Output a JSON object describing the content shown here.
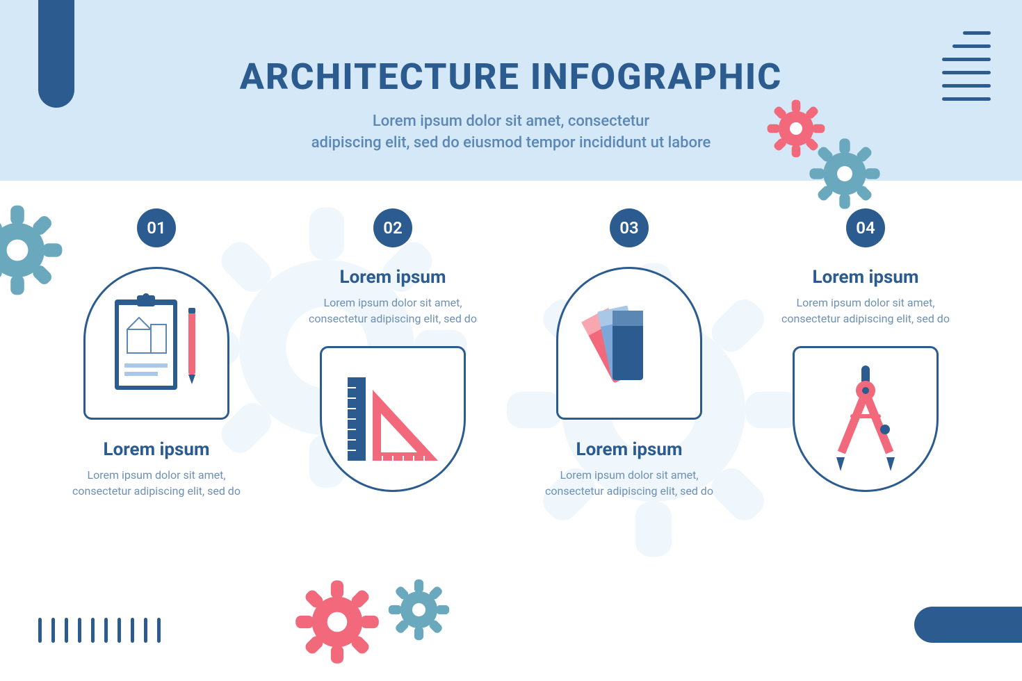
{
  "title": "ARCHITECTURE INFOGRAPHIC",
  "subtitle_line1": "Lorem ipsum dolor sit amet, consectetur",
  "subtitle_line2": "adipiscing elit, sed do eiusmod tempor incididunt ut labore",
  "colors": {
    "primary": "#2b5b8f",
    "header_bg": "#d4e8f7",
    "accent_red": "#f1697a",
    "accent_teal": "#6aa8bd",
    "text_muted": "#6d90b3",
    "light_blue": "#a9c8e8",
    "bg_gear": "#d4e8f7"
  },
  "decorations": {
    "lines_tr_widths": [
      40,
      55,
      70,
      70,
      70,
      70
    ],
    "ticks_bl_count": 10
  },
  "steps": [
    {
      "num": "01",
      "title": "Lorem ipsum",
      "desc": "Lorem ipsum dolor sit amet, consectetur adipiscing elit, sed do",
      "layout": "down",
      "shape": "arch-top",
      "icon": "clipboard"
    },
    {
      "num": "02",
      "title": "Lorem ipsum",
      "desc": "Lorem ipsum dolor sit amet, consectetur adipiscing elit, sed do",
      "layout": "up",
      "shape": "arch-bottom",
      "icon": "rulers"
    },
    {
      "num": "03",
      "title": "Lorem ipsum",
      "desc": "Lorem ipsum dolor sit amet, consectetur adipiscing elit, sed do",
      "layout": "down",
      "shape": "arch-top",
      "icon": "swatches"
    },
    {
      "num": "04",
      "title": "Lorem ipsum",
      "desc": "Lorem ipsum dolor sit amet, consectetur adipiscing elit, sed do",
      "layout": "up",
      "shape": "arch-bottom",
      "icon": "compass"
    }
  ]
}
